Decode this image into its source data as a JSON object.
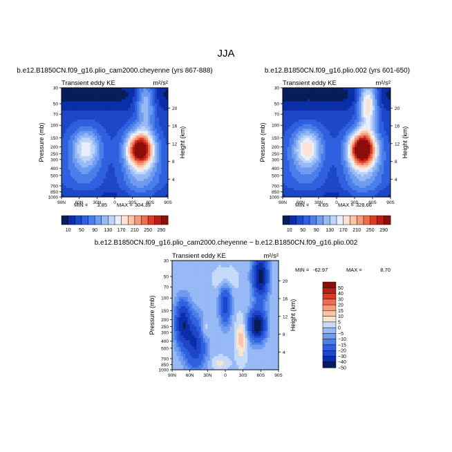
{
  "figure": {
    "title": "JJA"
  },
  "chart_data": [
    {
      "type": "heatmap",
      "panel": "top-left",
      "title": "b.e12.B1850CN.f09_g16.plio_cam2000.cheyenne (yrs 867-888)",
      "left_string": "Transient eddy KE",
      "right_string": "m²/s²",
      "xlabel": "",
      "ylabel": "Pressure (mb)",
      "y2label": "Height (km)",
      "x_ticks": [
        "90N",
        "60N",
        "30N",
        "0",
        "30S",
        "60S",
        "90S"
      ],
      "y_ticks": [
        "30",
        "50",
        "70",
        "100",
        "150",
        "200",
        "250",
        "300",
        "400",
        "500",
        "700",
        "850",
        "1000"
      ],
      "y2_ticks": [
        "20",
        "16",
        "12",
        "8",
        "4"
      ],
      "stats": {
        "min_label": "MIN =",
        "min": "3.85",
        "max_label": "MAX =",
        "max": "304.39"
      },
      "colorbar": {
        "orientation": "horizontal",
        "levels": [
          "10",
          "30",
          "50",
          "70",
          "90",
          "110",
          "130",
          "150",
          "170",
          "190",
          "210",
          "230",
          "250",
          "270",
          "290"
        ],
        "labels": [
          "10",
          "50",
          "90",
          "130",
          "170",
          "210",
          "250",
          "290"
        ]
      },
      "features": {
        "nh_jet_max": 150,
        "sh_jet_max": 300,
        "strat_sh_max": 120,
        "background": 40
      }
    },
    {
      "type": "heatmap",
      "panel": "top-right",
      "title": "b.e12.B1850CN.f09_g16.plio.002 (yrs 601-650)",
      "left_string": "Transient eddy KE",
      "right_string": "m²/s²",
      "xlabel": "",
      "ylabel": "Pressure (mb)",
      "y2label": "Height (km)",
      "x_ticks": [
        "90N",
        "60N",
        "30N",
        "0",
        "30S",
        "60S",
        "90S"
      ],
      "y_ticks": [
        "30",
        "50",
        "70",
        "100",
        "150",
        "200",
        "250",
        "300",
        "400",
        "500",
        "700",
        "850",
        "1000"
      ],
      "y2_ticks": [
        "20",
        "16",
        "12",
        "8",
        "4"
      ],
      "stats": {
        "min_label": "MIN =",
        "min": "4.65",
        "max_label": "MAX =",
        "max": "328.66"
      },
      "colorbar": {
        "orientation": "horizontal",
        "levels": [
          "10",
          "30",
          "50",
          "70",
          "90",
          "110",
          "130",
          "150",
          "170",
          "190",
          "210",
          "230",
          "250",
          "270",
          "290"
        ],
        "labels": [
          "10",
          "50",
          "90",
          "130",
          "170",
          "210",
          "250",
          "290"
        ]
      },
      "features": {
        "nh_jet_max": 175,
        "sh_jet_max": 328,
        "strat_sh_max": 180,
        "background": 40
      }
    },
    {
      "type": "heatmap",
      "panel": "bottom-difference",
      "title": "b.e12.B1850CN.f09_g16.plio_cam2000.cheyenne − b.e12.B1850CN.f09_g16.plio.002",
      "left_string": "Transient eddy KE",
      "right_string": "m²/s²",
      "xlabel": "",
      "ylabel": "Pressure (mb)",
      "y2label": "Height (km)",
      "x_ticks": [
        "90N",
        "60N",
        "30N",
        "0",
        "30S",
        "60S",
        "90S"
      ],
      "y_ticks": [
        "30",
        "50",
        "70",
        "100",
        "150",
        "200",
        "250",
        "300",
        "400",
        "500",
        "700",
        "850",
        "1000"
      ],
      "y2_ticks": [
        "20",
        "16",
        "12",
        "8",
        "4"
      ],
      "stats": {
        "min_label": "MIN =",
        "min": "-62.97",
        "max_label": "MAX =",
        "max": "8.70"
      },
      "colorbar": {
        "orientation": "vertical",
        "levels": [
          "-50",
          "-40",
          "-30",
          "-20",
          "-15",
          "-10",
          "-5",
          "0",
          "5",
          "10",
          "15",
          "20",
          "30",
          "40",
          "50"
        ],
        "labels": [
          "50",
          "40",
          "30",
          "20",
          "15",
          "10",
          "5",
          "0",
          "−5",
          "−10",
          "−15",
          "−20",
          "−30",
          "−40",
          "−50"
        ]
      },
      "features": {
        "min": -62.97,
        "max": 8.7
      }
    }
  ],
  "palettes": {
    "full": [
      "#081d58",
      "#0b2ea8",
      "#1e46c8",
      "#2f60e0",
      "#4a7ee8",
      "#6f9bf0",
      "#97b9f5",
      "#bfd5fa",
      "#e9f0fd",
      "#fde2d2",
      "#fcc3a6",
      "#f79a7a",
      "#ef6c4f",
      "#db3a25",
      "#b81e14",
      "#8a0e0a"
    ],
    "diff": [
      "#081d58",
      "#0b2ea8",
      "#1e46c8",
      "#2f60e0",
      "#4a7ee8",
      "#6f9bf0",
      "#97b9f5",
      "#c6dafa",
      "#fbe3d0",
      "#fcc3a6",
      "#f79a7a",
      "#ef6c4f",
      "#db3a25",
      "#b81e14",
      "#8a0e0a"
    ]
  }
}
